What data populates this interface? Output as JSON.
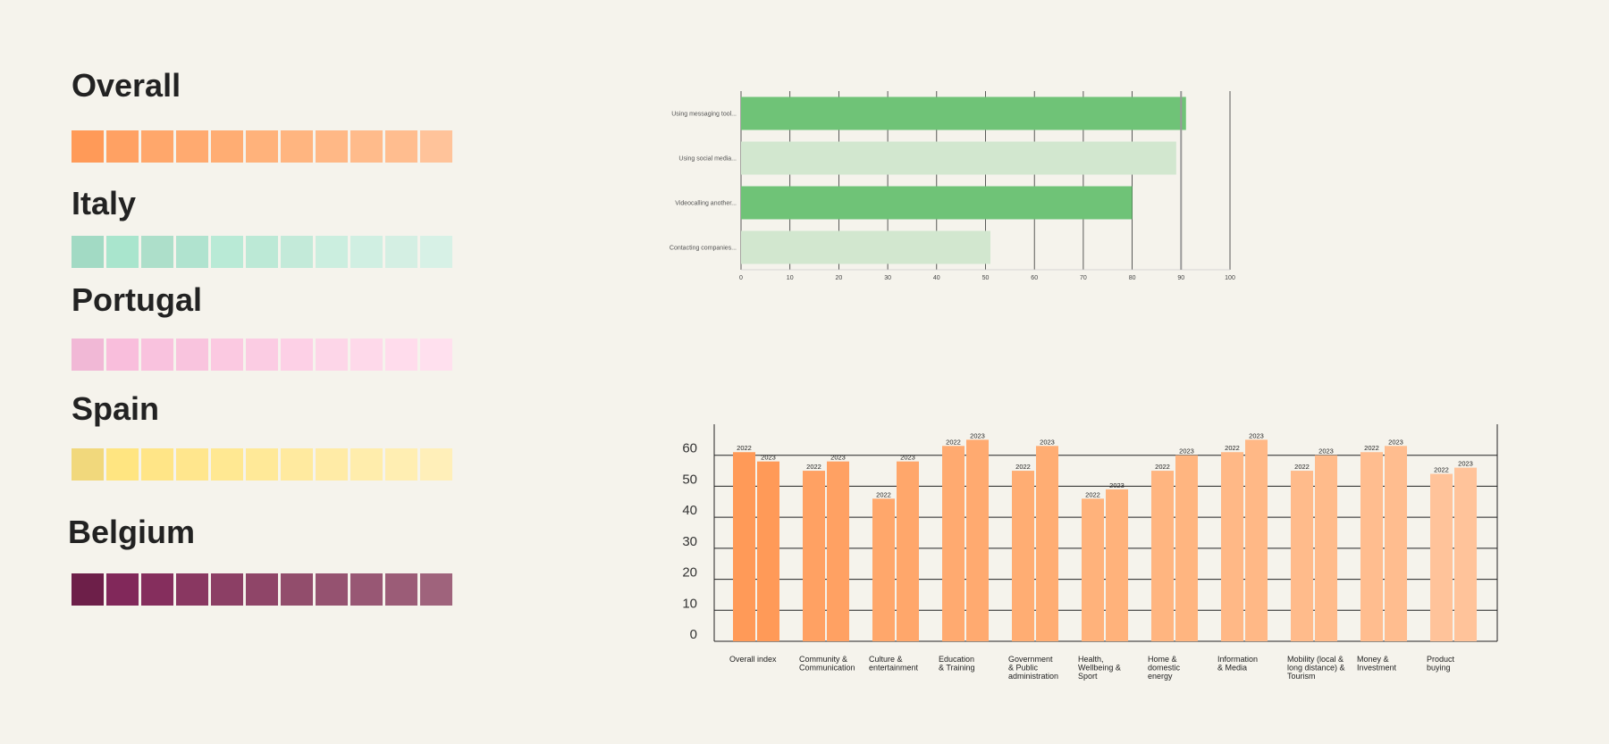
{
  "palettes": [
    {
      "title": "Overall",
      "colors": [
        "#ff9a58",
        "#ffa163",
        "#ffa76b",
        "#ffaa70",
        "#ffad73",
        "#ffb27b",
        "#ffb580",
        "#ffb886",
        "#ffbb8b",
        "#ffbd8f",
        "#ffc39a"
      ]
    },
    {
      "title": "Italy",
      "colors": [
        "#a2dac4",
        "#a9e5cd",
        "#addfca",
        "#b0e3cf",
        "#b9ead6",
        "#bce9d6",
        "#c3ead9",
        "#cbeedf",
        "#d0efe2",
        "#d4efe3",
        "#d7f1e6"
      ]
    },
    {
      "title": "Portugal",
      "colors": [
        "#f1b8d6",
        "#f9bedc",
        "#f9c2de",
        "#f9c4de",
        "#fbc9e1",
        "#fbcce3",
        "#fdd0e6",
        "#fdd6e8",
        "#fed9ea",
        "#ffdcec",
        "#ffe0ee"
      ]
    },
    {
      "title": "Spain",
      "colors": [
        "#f1d87c",
        "#ffe581",
        "#ffe587",
        "#ffe68d",
        "#ffe892",
        "#ffe998",
        "#ffea9f",
        "#ffeba6",
        "#ffedac",
        "#ffeeb2",
        "#ffefb9"
      ]
    },
    {
      "title": "Belgium",
      "colors": [
        "#6d1f49",
        "#81285a",
        "#852e5d",
        "#893761",
        "#8c3f65",
        "#8f4568",
        "#924d6c",
        "#955270",
        "#985774",
        "#9b5c77",
        "#9f637c"
      ]
    }
  ],
  "chart_data": [
    {
      "type": "bar",
      "orientation": "horizontal",
      "categories": [
        "Using messaging tool...",
        "Using social media...",
        "Videocalling another...",
        "Contacting companies..."
      ],
      "values": [
        91,
        89,
        80,
        51
      ],
      "colors": [
        "#6fc377",
        "#d2e7cf",
        "#6fc377",
        "#d2e7cf"
      ],
      "reference_line": 90,
      "xlim": [
        0,
        100
      ],
      "xticks": [
        0,
        10,
        20,
        30,
        40,
        50,
        60,
        70,
        80,
        90,
        100
      ],
      "grid": true
    },
    {
      "type": "bar",
      "orientation": "vertical",
      "categories": [
        [
          "Overall index"
        ],
        [
          "Community &",
          "Communication"
        ],
        [
          "Culture &",
          "entertainment"
        ],
        [
          "Education",
          "& Training"
        ],
        [
          "Government",
          "& Public",
          "administration"
        ],
        [
          "Health,",
          "Wellbeing &",
          "Sport"
        ],
        [
          "Home &",
          "domestic",
          "energy"
        ],
        [
          "Information",
          "& Media"
        ],
        [
          "Mobility (local &",
          "long distance) &",
          "Tourism"
        ],
        [
          "Money &",
          "Investment"
        ],
        [
          "Product",
          "buying"
        ]
      ],
      "series": [
        {
          "name": "2022",
          "values": [
            61,
            55,
            46,
            63,
            55,
            46,
            55,
            61,
            55,
            61,
            54
          ]
        },
        {
          "name": "2023",
          "values": [
            58,
            58,
            58,
            65,
            63,
            49,
            60,
            65,
            60,
            63,
            56
          ]
        }
      ],
      "colors": [
        "#ff9a58",
        "#ffa163",
        "#ffa76b",
        "#ffaa70",
        "#ffad73",
        "#ffb27b",
        "#ffb580",
        "#ffb886",
        "#ffbb8b",
        "#ffbd8f",
        "#ffc39a"
      ],
      "ylim": [
        0,
        70
      ],
      "yticks": [
        0,
        10,
        20,
        30,
        40,
        50,
        60
      ],
      "grid": true
    }
  ]
}
